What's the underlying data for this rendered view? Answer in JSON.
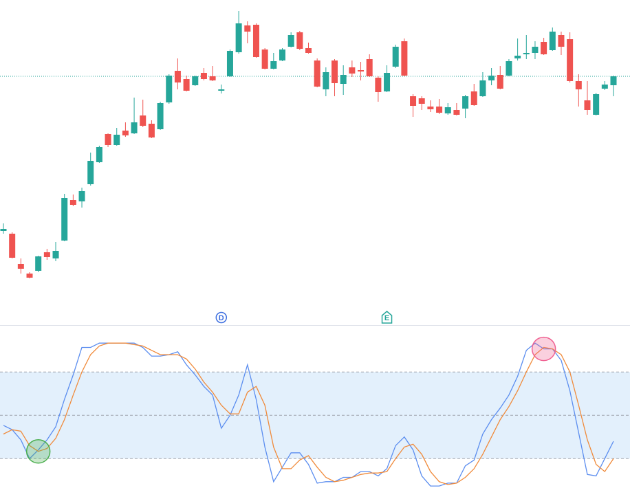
{
  "chart_data": [
    {
      "type": "candlestick",
      "ylim": [
        10,
        480
      ],
      "up_color": "#26a69a",
      "down_color": "#ef5350",
      "last_price": 369,
      "open": [
        144,
        140,
        96,
        82,
        86,
        113,
        104,
        130,
        189,
        187,
        212,
        244,
        285,
        269,
        290,
        286,
        312,
        300,
        292,
        331,
        377,
        365,
        356,
        374,
        369,
        348,
        369,
        404,
        443,
        444,
        408,
        380,
        392,
        412,
        433,
        410,
        392,
        350,
        392,
        358,
        382,
        378,
        394,
        367,
        347,
        383,
        420,
        340,
        337,
        325,
        325,
        315,
        320,
        322,
        347,
        340,
        363,
        371,
        370,
        395,
        401,
        403,
        419,
        407,
        429,
        423,
        362,
        334,
        313,
        351,
        356
      ],
      "high": [
        155,
        142,
        104,
        84,
        108,
        118,
        128,
        198,
        197,
        207,
        258,
        268,
        286,
        294,
        302,
        338,
        335,
        305,
        332,
        372,
        395,
        370,
        370,
        381,
        384,
        357,
        408,
        464,
        449,
        446,
        410,
        403,
        410,
        433,
        435,
        418,
        395,
        382,
        394,
        385,
        392,
        390,
        401,
        369,
        385,
        415,
        424,
        343,
        340,
        334,
        336,
        330,
        330,
        342,
        358,
        375,
        381,
        384,
        394,
        424,
        429,
        420,
        425,
        440,
        434,
        433,
        372,
        362,
        345,
        362,
        370
      ],
      "low": [
        140,
        104,
        82,
        75,
        84,
        102,
        100,
        129,
        180,
        178,
        210,
        243,
        266,
        268,
        281,
        285,
        295,
        279,
        291,
        329,
        350,
        347,
        355,
        363,
        362,
        344,
        368,
        402,
        417,
        396,
        379,
        379,
        391,
        411,
        407,
        402,
        353,
        340,
        340,
        342,
        368,
        363,
        368,
        332,
        346,
        381,
        369,
        310,
        320,
        317,
        314,
        313,
        312,
        308,
        326,
        339,
        356,
        350,
        369,
        392,
        394,
        394,
        400,
        406,
        400,
        360,
        325,
        313,
        312,
        349,
        340
      ],
      "close": [
        147,
        105,
        89,
        76,
        107,
        106,
        115,
        192,
        182,
        202,
        246,
        266,
        269,
        284,
        283,
        302,
        297,
        280,
        330,
        370,
        360,
        348,
        369,
        365,
        363,
        350,
        406,
        446,
        434,
        397,
        380,
        391,
        408,
        429,
        409,
        403,
        354,
        375,
        359,
        371,
        373,
        376,
        369,
        346,
        374,
        412,
        370,
        326,
        329,
        321,
        316,
        324,
        313,
        340,
        327,
        363,
        370,
        351,
        391,
        399,
        403,
        412,
        401,
        434,
        412,
        362,
        350,
        320,
        343,
        357,
        369
      ],
      "events": [
        {
          "label": "D",
          "index": 25,
          "color": "#3d6fe0"
        },
        {
          "label": "E",
          "index": 44,
          "color": "#26a69a"
        }
      ]
    },
    {
      "type": "line",
      "ylim": [
        -8,
        112
      ],
      "bands": [
        20,
        50,
        80
      ],
      "band_color": "#e3f0fc",
      "series": [
        {
          "color": "#5b8def",
          "values": [
            43,
            40,
            33,
            20,
            26,
            33,
            42,
            61,
            78,
            97,
            97,
            100,
            100,
            100,
            100,
            100,
            97,
            91,
            91,
            92,
            94,
            85,
            78,
            70,
            64,
            41,
            50,
            64,
            85,
            61,
            28,
            4,
            14,
            24,
            24,
            16,
            3,
            4,
            4,
            7,
            7,
            11,
            11,
            8,
            13,
            29,
            35,
            26,
            8,
            1,
            1,
            3,
            3,
            15,
            19,
            37,
            47,
            55,
            64,
            77,
            95,
            100,
            96,
            96,
            88,
            67,
            38,
            9,
            8,
            20,
            32
          ]
        },
        {
          "color": "#f08a3a",
          "values": [
            37,
            40,
            39,
            29,
            25,
            27,
            34,
            47,
            64,
            80,
            92,
            98,
            100,
            100,
            100,
            99,
            98,
            95,
            92,
            92,
            92,
            89,
            82,
            73,
            66,
            57,
            51,
            51,
            66,
            70,
            57,
            28,
            13,
            13,
            19,
            22,
            14,
            7,
            4,
            5,
            7,
            9,
            10,
            10,
            11,
            20,
            28,
            30,
            23,
            11,
            4,
            2,
            3,
            7,
            13,
            23,
            35,
            47,
            56,
            67,
            80,
            92,
            97,
            96,
            92,
            80,
            57,
            33,
            16,
            11,
            20
          ]
        }
      ],
      "signals": [
        {
          "index": 4,
          "value": 25,
          "color": "#4caf50"
        },
        {
          "index": 62,
          "value": 96,
          "color": "#f06292"
        }
      ]
    }
  ]
}
